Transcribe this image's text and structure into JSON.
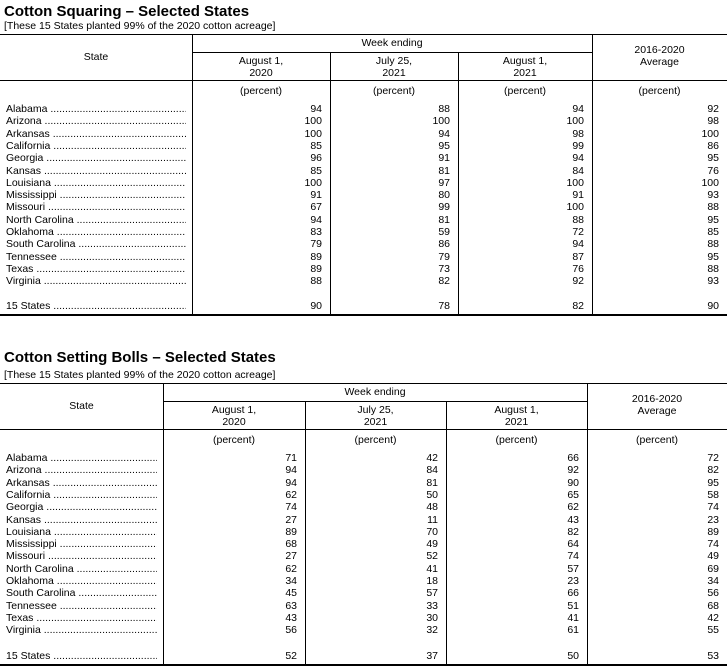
{
  "tables": [
    {
      "title": "Cotton Squaring – Selected States",
      "subtitle": "[These 15 States planted 99% of the 2020 cotton acreage]",
      "state_header": "State",
      "group_header": "Week ending",
      "columns": [
        "August 1,\n2020",
        "July 25,\n2021",
        "August 1,\n2021",
        "2016-2020\nAverage"
      ],
      "unit": "(percent)",
      "rows": [
        {
          "state": "Alabama",
          "values": [
            "94",
            "88",
            "94",
            "92"
          ]
        },
        {
          "state": "Arizona",
          "values": [
            "100",
            "100",
            "100",
            "98"
          ]
        },
        {
          "state": "Arkansas",
          "values": [
            "100",
            "94",
            "98",
            "100"
          ]
        },
        {
          "state": "California",
          "values": [
            "85",
            "95",
            "99",
            "86"
          ]
        },
        {
          "state": "Georgia",
          "values": [
            "96",
            "91",
            "94",
            "95"
          ]
        },
        {
          "state": "Kansas",
          "values": [
            "85",
            "81",
            "84",
            "76"
          ]
        },
        {
          "state": "Louisiana",
          "values": [
            "100",
            "97",
            "100",
            "100"
          ]
        },
        {
          "state": "Mississippi",
          "values": [
            "91",
            "80",
            "91",
            "93"
          ]
        },
        {
          "state": "Missouri",
          "values": [
            "67",
            "99",
            "100",
            "88"
          ]
        },
        {
          "state": "North Carolina",
          "values": [
            "94",
            "81",
            "88",
            "95"
          ]
        },
        {
          "state": "Oklahoma",
          "values": [
            "83",
            "59",
            "72",
            "85"
          ]
        },
        {
          "state": "South Carolina",
          "values": [
            "79",
            "86",
            "94",
            "88"
          ]
        },
        {
          "state": "Tennessee",
          "values": [
            "89",
            "79",
            "87",
            "95"
          ]
        },
        {
          "state": "Texas",
          "values": [
            "89",
            "73",
            "76",
            "88"
          ]
        },
        {
          "state": "Virginia",
          "values": [
            "88",
            "82",
            "92",
            "93"
          ]
        }
      ],
      "total": {
        "state": "15 States",
        "values": [
          "90",
          "78",
          "82",
          "90"
        ]
      }
    },
    {
      "title": "Cotton Setting Bolls – Selected States",
      "subtitle": "[These 15 States planted 99% of the 2020 cotton acreage]",
      "state_header": "State",
      "group_header": "Week ending",
      "columns": [
        "August 1,\n2020",
        "July 25,\n2021",
        "August 1,\n2021",
        "2016-2020\nAverage"
      ],
      "unit": "(percent)",
      "rows": [
        {
          "state": "Alabama",
          "values": [
            "71",
            "42",
            "66",
            "72"
          ]
        },
        {
          "state": "Arizona",
          "values": [
            "94",
            "84",
            "92",
            "82"
          ]
        },
        {
          "state": "Arkansas",
          "values": [
            "94",
            "81",
            "90",
            "95"
          ]
        },
        {
          "state": "California",
          "values": [
            "62",
            "50",
            "65",
            "58"
          ]
        },
        {
          "state": "Georgia",
          "values": [
            "74",
            "48",
            "62",
            "74"
          ]
        },
        {
          "state": "Kansas",
          "values": [
            "27",
            "11",
            "43",
            "23"
          ]
        },
        {
          "state": "Louisiana",
          "values": [
            "89",
            "70",
            "82",
            "89"
          ]
        },
        {
          "state": "Mississippi",
          "values": [
            "68",
            "49",
            "64",
            "74"
          ]
        },
        {
          "state": "Missouri",
          "values": [
            "27",
            "52",
            "74",
            "49"
          ]
        },
        {
          "state": "North Carolina",
          "values": [
            "62",
            "41",
            "57",
            "69"
          ]
        },
        {
          "state": "Oklahoma",
          "values": [
            "34",
            "18",
            "23",
            "34"
          ]
        },
        {
          "state": "South Carolina",
          "values": [
            "45",
            "57",
            "66",
            "56"
          ]
        },
        {
          "state": "Tennessee",
          "values": [
            "63",
            "33",
            "51",
            "68"
          ]
        },
        {
          "state": "Texas",
          "values": [
            "43",
            "30",
            "41",
            "42"
          ]
        },
        {
          "state": "Virginia",
          "values": [
            "56",
            "32",
            "61",
            "55"
          ]
        }
      ],
      "total": {
        "state": "15 States",
        "values": [
          "52",
          "37",
          "50",
          "53"
        ]
      }
    }
  ]
}
